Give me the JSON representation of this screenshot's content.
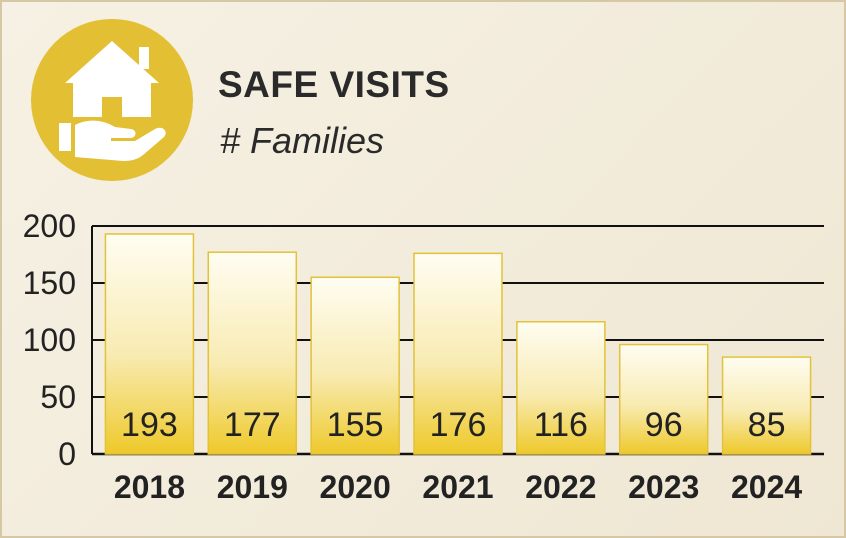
{
  "header": {
    "title": "SAFE VISITS",
    "subtitle": "# Families",
    "icon": "house-in-hand-icon"
  },
  "colors": {
    "badge": "#e3bf34",
    "bar_top": "#fffdf2",
    "bar_bottom": "#eec92a",
    "bar_stroke": "#e2c23a",
    "grid": "#111111"
  },
  "chart_data": {
    "type": "bar",
    "title": "SAFE VISITS",
    "subtitle": "# Families",
    "categories": [
      "2018",
      "2019",
      "2020",
      "2021",
      "2022",
      "2023",
      "2024"
    ],
    "values": [
      193,
      177,
      155,
      176,
      116,
      96,
      85
    ],
    "data_labels": [
      "193",
      "177",
      "155",
      "176",
      "116",
      "96",
      "85"
    ],
    "ylim": [
      0,
      200
    ],
    "yticks": [
      0,
      50,
      100,
      150,
      200
    ],
    "xlabel": "",
    "ylabel": "",
    "grid": true,
    "legend": "none"
  }
}
